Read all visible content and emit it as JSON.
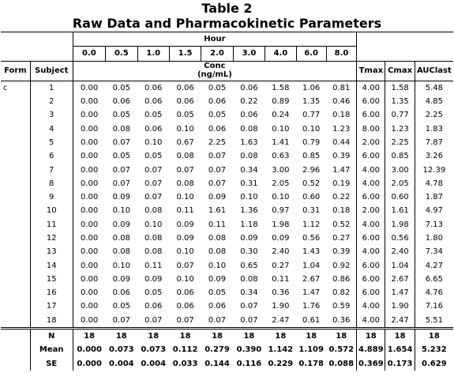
{
  "title": {
    "line1": "Table 2",
    "line2": "Raw Data and Pharmacokinetic Parameters"
  },
  "headers": {
    "hour": "Hour",
    "times": [
      "0.0",
      "0.5",
      "1.0",
      "1.5",
      "2.0",
      "3.0",
      "4.0",
      "6.0",
      "8.0"
    ],
    "form": "Form",
    "subject": "Subject",
    "conc_line1": "Conc",
    "conc_line2": "(ng/mL)",
    "params": [
      "Tmax",
      "Cmax",
      "AUClast"
    ]
  },
  "rows": [
    {
      "form": "c",
      "subject": "1",
      "values": [
        "0.00",
        "0.05",
        "0.06",
        "0.06",
        "0.05",
        "0.06",
        "1.58",
        "1.06",
        "0.81",
        "4.00",
        "1.58",
        "5.48"
      ]
    },
    {
      "form": "",
      "subject": "2",
      "values": [
        "0.00",
        "0.06",
        "0.06",
        "0.06",
        "0.06",
        "0.22",
        "0.89",
        "1.35",
        "0.46",
        "6.00",
        "1.35",
        "4.85"
      ]
    },
    {
      "form": "",
      "subject": "3",
      "values": [
        "0.00",
        "0.05",
        "0.05",
        "0.05",
        "0.05",
        "0.06",
        "0.24",
        "0.77",
        "0.18",
        "6.00",
        "0.77",
        "2.25"
      ]
    },
    {
      "form": "",
      "subject": "4",
      "values": [
        "0.00",
        "0.08",
        "0.06",
        "0.10",
        "0.06",
        "0.08",
        "0.10",
        "0.10",
        "1.23",
        "8.00",
        "1.23",
        "1.83"
      ]
    },
    {
      "form": "",
      "subject": "5",
      "values": [
        "0.00",
        "0.07",
        "0.10",
        "0.67",
        "2.25",
        "1.63",
        "1.41",
        "0.79",
        "0.44",
        "2.00",
        "2.25",
        "7.87"
      ]
    },
    {
      "form": "",
      "subject": "6",
      "values": [
        "0.00",
        "0.05",
        "0.05",
        "0.08",
        "0.07",
        "0.08",
        "0.63",
        "0.85",
        "0.39",
        "6.00",
        "0.85",
        "3.26"
      ]
    },
    {
      "form": "",
      "subject": "7",
      "values": [
        "0.00",
        "0.07",
        "0.07",
        "0.07",
        "0.07",
        "0.34",
        "3.00",
        "2.96",
        "1.47",
        "4.00",
        "3.00",
        "12.39"
      ]
    },
    {
      "form": "",
      "subject": "8",
      "values": [
        "0.00",
        "0.07",
        "0.07",
        "0.08",
        "0.07",
        "0.31",
        "2.05",
        "0.52",
        "0.19",
        "4.00",
        "2.05",
        "4.78"
      ]
    },
    {
      "form": "",
      "subject": "9",
      "values": [
        "0.00",
        "0.09",
        "0.07",
        "0.10",
        "0.09",
        "0.10",
        "0.10",
        "0.60",
        "0.22",
        "6.00",
        "0.60",
        "1.87"
      ]
    },
    {
      "form": "",
      "subject": "10",
      "values": [
        "0.00",
        "0.10",
        "0.08",
        "0.11",
        "1.61",
        "1.36",
        "0.97",
        "0.31",
        "0.18",
        "2.00",
        "1.61",
        "4.97"
      ]
    },
    {
      "form": "",
      "subject": "11",
      "values": [
        "0.00",
        "0.09",
        "0.10",
        "0.09",
        "0.11",
        "1.18",
        "1.98",
        "1.12",
        "0.52",
        "4.00",
        "1.98",
        "7.13"
      ]
    },
    {
      "form": "",
      "subject": "12",
      "values": [
        "0.00",
        "0.08",
        "0.08",
        "0.09",
        "0.08",
        "0.09",
        "0.09",
        "0.56",
        "0.27",
        "6.00",
        "0.56",
        "1.80"
      ]
    },
    {
      "form": "",
      "subject": "13",
      "values": [
        "0.00",
        "0.08",
        "0.08",
        "0.10",
        "0.08",
        "0.30",
        "2.40",
        "1.43",
        "0.39",
        "4.00",
        "2.40",
        "7.34"
      ]
    },
    {
      "form": "",
      "subject": "14",
      "values": [
        "0.00",
        "0.10",
        "0.11",
        "0.07",
        "0.10",
        "0.65",
        "0.27",
        "1.04",
        "0.92",
        "6.00",
        "1.04",
        "4.27"
      ]
    },
    {
      "form": "",
      "subject": "15",
      "values": [
        "0.00",
        "0.09",
        "0.09",
        "0.10",
        "0.09",
        "0.08",
        "0.11",
        "2.67",
        "0.86",
        "6.00",
        "2.67",
        "6.65"
      ]
    },
    {
      "form": "",
      "subject": "16",
      "values": [
        "0.00",
        "0.06",
        "0.05",
        "0.06",
        "0.05",
        "0.34",
        "0.36",
        "1.47",
        "0.82",
        "6.00",
        "1.47",
        "4.76"
      ]
    },
    {
      "form": "",
      "subject": "17",
      "values": [
        "0.00",
        "0.05",
        "0.06",
        "0.06",
        "0.06",
        "0.07",
        "1.90",
        "1.76",
        "0.59",
        "4.00",
        "1.90",
        "7.16"
      ]
    },
    {
      "form": "",
      "subject": "18",
      "values": [
        "0.00",
        "0.07",
        "0.07",
        "0.07",
        "0.07",
        "0.07",
        "2.47",
        "0.61",
        "0.36",
        "4.00",
        "2.47",
        "5.51"
      ]
    }
  ],
  "summary": [
    {
      "label": "N",
      "values": [
        "18",
        "18",
        "18",
        "18",
        "18",
        "18",
        "18",
        "18",
        "18",
        "18",
        "18",
        "18"
      ]
    },
    {
      "label": "Mean",
      "values": [
        "0.000",
        "0.073",
        "0.073",
        "0.112",
        "0.279",
        "0.390",
        "1.142",
        "1.109",
        "0.572",
        "4.889",
        "1.654",
        "5.232"
      ]
    },
    {
      "label": "SE",
      "values": [
        "0.000",
        "0.004",
        "0.004",
        "0.033",
        "0.144",
        "0.116",
        "0.229",
        "0.178",
        "0.088",
        "0.369",
        "0.173",
        "0.629"
      ]
    }
  ]
}
